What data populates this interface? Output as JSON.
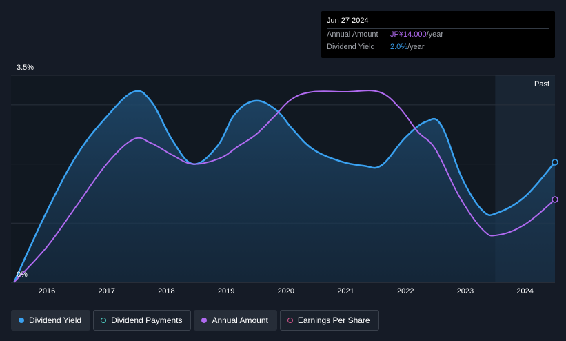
{
  "tooltip": {
    "date": "Jun 27 2024",
    "annual_label": "Annual Amount",
    "annual_value": "JP¥14.000",
    "annual_unit": "/year",
    "yield_label": "Dividend Yield",
    "yield_value": "2.0%",
    "yield_unit": "/year"
  },
  "legend": [
    {
      "label": "Dividend Yield",
      "color": "#3aa1f0",
      "filled": true,
      "active": true
    },
    {
      "label": "Dividend Payments",
      "color": "#4fd1c5",
      "filled": false,
      "active": false
    },
    {
      "label": "Annual Amount",
      "color": "#b06af0",
      "filled": true,
      "active": true
    },
    {
      "label": "Earnings Per Share",
      "color": "#d6558c",
      "filled": false,
      "active": false
    }
  ],
  "chart_data": {
    "type": "line",
    "x_ticks": [
      "2016",
      "2017",
      "2018",
      "2019",
      "2020",
      "2021",
      "2022",
      "2023",
      "2024"
    ],
    "y_tick_labels": {
      "top": "3.5%",
      "bottom": "0%"
    },
    "ylim": [
      0,
      3.5
    ],
    "xlim": [
      2015.4,
      2024.5
    ],
    "past_label": "Past",
    "past_start": 2023.5,
    "grid": true,
    "series": [
      {
        "name": "Dividend Yield",
        "color": "#3aa1f0",
        "points": [
          [
            2015.45,
            0.0
          ],
          [
            2016.0,
            1.2
          ],
          [
            2016.5,
            2.15
          ],
          [
            2017.0,
            2.8
          ],
          [
            2017.45,
            3.22
          ],
          [
            2017.75,
            3.05
          ],
          [
            2018.1,
            2.4
          ],
          [
            2018.45,
            2.0
          ],
          [
            2018.85,
            2.3
          ],
          [
            2019.15,
            2.85
          ],
          [
            2019.5,
            3.07
          ],
          [
            2019.85,
            2.9
          ],
          [
            2020.1,
            2.6
          ],
          [
            2020.45,
            2.25
          ],
          [
            2020.9,
            2.05
          ],
          [
            2021.3,
            1.97
          ],
          [
            2021.6,
            1.98
          ],
          [
            2022.0,
            2.45
          ],
          [
            2022.35,
            2.72
          ],
          [
            2022.6,
            2.65
          ],
          [
            2022.95,
            1.75
          ],
          [
            2023.3,
            1.2
          ],
          [
            2023.55,
            1.18
          ],
          [
            2024.0,
            1.45
          ],
          [
            2024.5,
            2.03
          ]
        ]
      },
      {
        "name": "Annual Amount",
        "color": "#b06af0",
        "points": [
          [
            2015.45,
            0.0
          ],
          [
            2016.0,
            0.6
          ],
          [
            2016.5,
            1.3
          ],
          [
            2017.0,
            2.0
          ],
          [
            2017.45,
            2.42
          ],
          [
            2017.75,
            2.35
          ],
          [
            2018.1,
            2.15
          ],
          [
            2018.45,
            2.0
          ],
          [
            2018.9,
            2.1
          ],
          [
            2019.2,
            2.3
          ],
          [
            2019.5,
            2.5
          ],
          [
            2019.8,
            2.8
          ],
          [
            2020.1,
            3.1
          ],
          [
            2020.45,
            3.22
          ],
          [
            2021.0,
            3.22
          ],
          [
            2021.55,
            3.22
          ],
          [
            2021.9,
            2.95
          ],
          [
            2022.2,
            2.55
          ],
          [
            2022.5,
            2.25
          ],
          [
            2022.9,
            1.45
          ],
          [
            2023.3,
            0.88
          ],
          [
            2023.55,
            0.8
          ],
          [
            2024.0,
            0.98
          ],
          [
            2024.5,
            1.4
          ]
        ]
      }
    ]
  }
}
